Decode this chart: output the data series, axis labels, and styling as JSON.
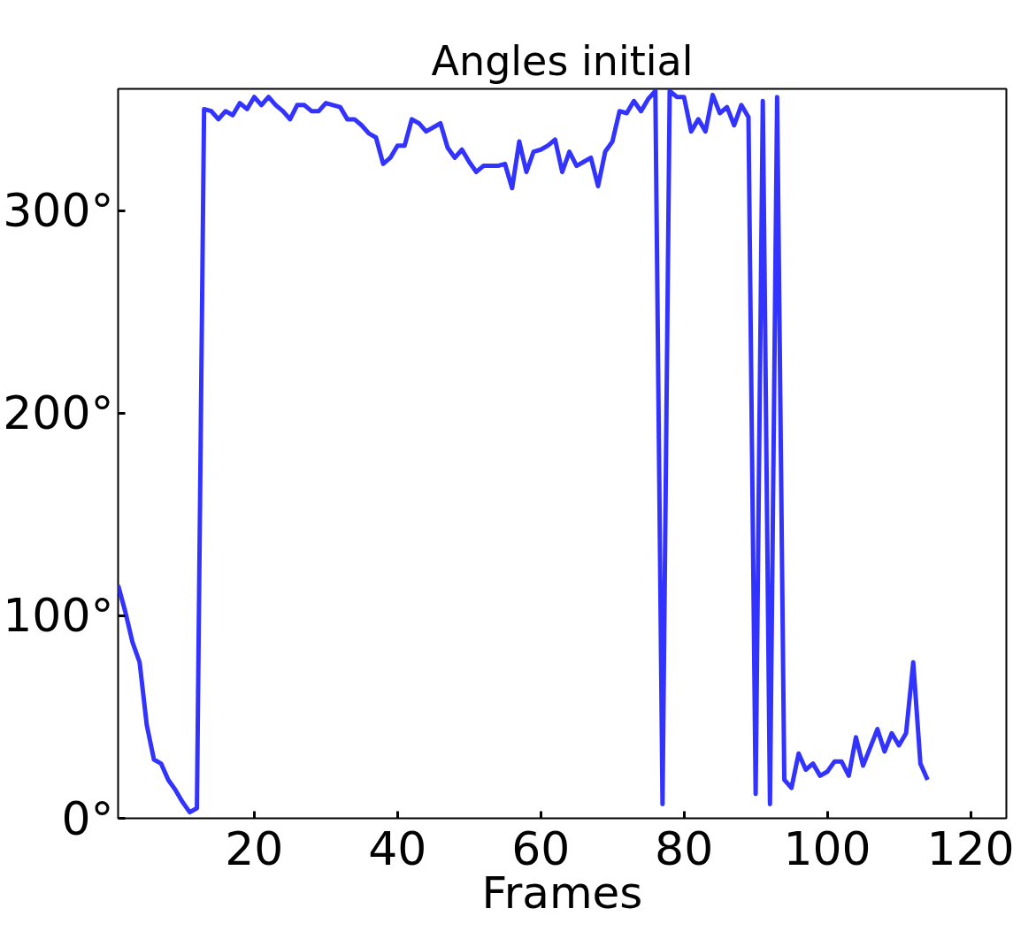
{
  "chart_data": {
    "type": "line",
    "title": "Angles initial",
    "xlabel": "Frames",
    "x": [
      1,
      2,
      3,
      4,
      5,
      6,
      7,
      8,
      9,
      10,
      11,
      12,
      13,
      14,
      15,
      16,
      17,
      18,
      19,
      20,
      21,
      22,
      23,
      24,
      25,
      26,
      27,
      28,
      29,
      30,
      31,
      32,
      33,
      34,
      35,
      36,
      37,
      38,
      39,
      40,
      41,
      42,
      43,
      44,
      46,
      47,
      48,
      49,
      50,
      51,
      52,
      53,
      54,
      55,
      56,
      57,
      58,
      59,
      60,
      61,
      62,
      63,
      64,
      65,
      66,
      67,
      68,
      69,
      70,
      71,
      72,
      73,
      74,
      75,
      76,
      77,
      78,
      79,
      80,
      81,
      82,
      83,
      84,
      85,
      86,
      87,
      88,
      89,
      90,
      91,
      92,
      93,
      94,
      95,
      96,
      97,
      98,
      99,
      100,
      101,
      102,
      103,
      104,
      105,
      106,
      107,
      108,
      109,
      110,
      111,
      112,
      113,
      114
    ],
    "series": [
      {
        "color": "#3333ff",
        "values": [
          115,
          102,
          87,
          77,
          46,
          29,
          27,
          19,
          14,
          8,
          3,
          5,
          350,
          349,
          345,
          349,
          347,
          353,
          350,
          356,
          352,
          356,
          352,
          349,
          345,
          352,
          352,
          349,
          349,
          353,
          352,
          351,
          345,
          345,
          342,
          338,
          336,
          323,
          326,
          332,
          332,
          345,
          343,
          339,
          343,
          331,
          326,
          330,
          324,
          319,
          322,
          322,
          322,
          323,
          311,
          334,
          319,
          329,
          330,
          332,
          335,
          319,
          329,
          322,
          324,
          326,
          312,
          329,
          334,
          349,
          348,
          354,
          349,
          355,
          359,
          7,
          359,
          356,
          356,
          339,
          345,
          339,
          357,
          348,
          351,
          342,
          352,
          346,
          12,
          354,
          7,
          356,
          19,
          15,
          32,
          24,
          27,
          21,
          23,
          28,
          28,
          21,
          40,
          26,
          35,
          44,
          33,
          42,
          36,
          42,
          77,
          27,
          19
        ]
      }
    ],
    "xlim": [
      1,
      125
    ],
    "xticks": [
      20,
      40,
      60,
      80,
      100,
      120
    ],
    "ylim": [
      0,
      360
    ],
    "yticks": [
      {
        "value": 0,
        "label": "0°"
      },
      {
        "value": 100,
        "label": "100°"
      },
      {
        "value": 200,
        "label": "200°"
      },
      {
        "value": 300,
        "label": "300°"
      }
    ],
    "grid": false,
    "line_style": "solid"
  }
}
